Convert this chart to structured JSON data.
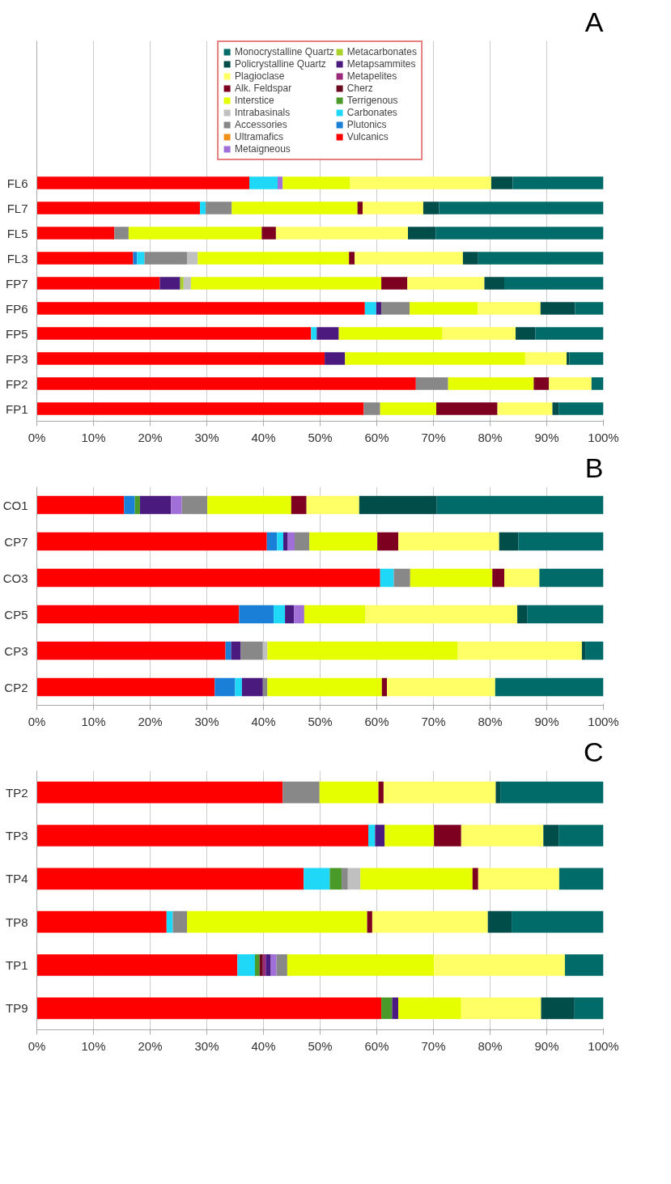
{
  "chart_data": [
    {
      "type": "bar",
      "orientation": "horizontal",
      "stacked": true,
      "title": "A",
      "categories": [
        "FL6",
        "FL7",
        "FL5",
        "FL3",
        "FP7",
        "FP6",
        "FP5",
        "FP3",
        "FP2",
        "FP1"
      ],
      "xlim": [
        0,
        100
      ],
      "xticks": [
        {
          "value": 0,
          "label": "0%"
        },
        {
          "value": 10,
          "label": "10%"
        },
        {
          "value": 20,
          "label": "20%"
        },
        {
          "value": 30,
          "label": "30%"
        },
        {
          "value": 40,
          "label": "40%"
        },
        {
          "value": 50,
          "label": "50%"
        },
        {
          "value": 60,
          "label": "60%"
        },
        {
          "value": 70,
          "label": "70%"
        },
        {
          "value": 80,
          "label": "80%"
        },
        {
          "value": 90,
          "label": "90%"
        },
        {
          "value": 100,
          "label": "100%"
        }
      ],
      "grid": "x",
      "legend": "top",
      "series": [
        {
          "name": "Vulcanics",
          "color": "#ff0000",
          "values": [
            37.5,
            28.8,
            13.7,
            17.0,
            21.7,
            57.9,
            48.4,
            50.8,
            66.9,
            57.7
          ]
        },
        {
          "name": "Plutonics",
          "color": "#1a7fd6",
          "values": [
            null,
            null,
            null,
            0.7,
            null,
            null,
            null,
            null,
            null,
            null
          ]
        },
        {
          "name": "Carbonates",
          "color": "#1fd8f8",
          "values": [
            5.0,
            1.0,
            null,
            1.3,
            null,
            2.0,
            1.0,
            null,
            null,
            null
          ]
        },
        {
          "name": "Terrigenous",
          "color": "#4a9a2a",
          "values": [
            null,
            null,
            null,
            null,
            null,
            null,
            null,
            null,
            null,
            null
          ]
        },
        {
          "name": "Cherz",
          "color": "#6b0a1e",
          "values": [
            null,
            null,
            null,
            null,
            null,
            null,
            null,
            null,
            null,
            null
          ]
        },
        {
          "name": "Metapelites",
          "color": "#9b2a7a",
          "values": [
            null,
            null,
            null,
            null,
            null,
            null,
            null,
            null,
            null,
            null
          ]
        },
        {
          "name": "Metapsammites",
          "color": "#4b1a7e",
          "values": [
            null,
            null,
            null,
            null,
            3.6,
            0.9,
            3.9,
            3.6,
            null,
            null
          ]
        },
        {
          "name": "Metacarbonates",
          "color": "#aad12a",
          "values": [
            null,
            null,
            null,
            null,
            0.6,
            null,
            null,
            null,
            null,
            null
          ]
        },
        {
          "name": "Metaigneous",
          "color": "#a070d8",
          "values": [
            0.9,
            null,
            null,
            null,
            null,
            null,
            null,
            null,
            null,
            null
          ]
        },
        {
          "name": "Ultramafics",
          "color": "#f0901a",
          "values": [
            null,
            null,
            null,
            null,
            null,
            null,
            null,
            null,
            null,
            null
          ]
        },
        {
          "name": "Accessories",
          "color": "#888888",
          "values": [
            null,
            4.6,
            2.5,
            7.5,
            null,
            5.0,
            null,
            null,
            5.7,
            2.9
          ]
        },
        {
          "name": "Intrabasinals",
          "color": "#c0c0c0",
          "values": [
            null,
            null,
            null,
            1.9,
            1.3,
            null,
            null,
            null,
            null,
            null
          ]
        },
        {
          "name": "Interstice",
          "color": "#e6ff00",
          "values": [
            11.9,
            22.2,
            23.5,
            26.7,
            33.6,
            12.0,
            18.3,
            31.8,
            15.1,
            9.9
          ]
        },
        {
          "name": "Alk. Feldspar",
          "color": "#7e0021",
          "values": [
            null,
            0.9,
            2.5,
            1.0,
            4.6,
            null,
            null,
            null,
            2.7,
            10.8
          ]
        },
        {
          "name": "Plagioclase",
          "color": "#ffff66",
          "values": [
            24.9,
            10.7,
            23.3,
            19.1,
            13.6,
            11.1,
            12.9,
            7.3,
            7.5,
            9.7
          ]
        },
        {
          "name": "Policrystalline Quartz",
          "color": "#004d4a",
          "values": [
            3.8,
            2.8,
            4.9,
            2.7,
            3.5,
            6.1,
            3.5,
            0.5,
            null,
            1.1
          ]
        },
        {
          "name": "Monocrystalline Quartz",
          "color": "#006b69",
          "values": [
            16.0,
            29.0,
            29.6,
            22.1,
            17.5,
            5.0,
            12.0,
            6.0,
            2.1,
            7.9
          ]
        }
      ]
    },
    {
      "type": "bar",
      "orientation": "horizontal",
      "stacked": true,
      "title": "B",
      "categories": [
        "CO1",
        "CP7",
        "CO3",
        "CP5",
        "CP3",
        "CP2"
      ],
      "xlim": [
        0,
        100
      ],
      "xticks": [
        {
          "value": 0,
          "label": "0%"
        },
        {
          "value": 10,
          "label": "10%"
        },
        {
          "value": 20,
          "label": "20%"
        },
        {
          "value": 30,
          "label": "30%"
        },
        {
          "value": 40,
          "label": "40%"
        },
        {
          "value": 50,
          "label": "50%"
        },
        {
          "value": 60,
          "label": "60%"
        },
        {
          "value": 70,
          "label": "70%"
        },
        {
          "value": 80,
          "label": "80%"
        },
        {
          "value": 90,
          "label": "90%"
        },
        {
          "value": 100,
          "label": "100%"
        }
      ],
      "grid": "x",
      "series": [
        {
          "color": "#ff0000",
          "values": [
            15.4,
            40.6,
            60.6,
            35.7,
            33.3,
            31.4
          ]
        },
        {
          "color": "#1a7fd6",
          "values": [
            1.9,
            1.8,
            null,
            6.1,
            1.0,
            3.6
          ]
        },
        {
          "color": "#1fd8f8",
          "values": [
            null,
            1.1,
            2.4,
            2.0,
            null,
            1.2
          ]
        },
        {
          "color": "#4a9a2a",
          "values": [
            0.9,
            null,
            null,
            null,
            null,
            null
          ]
        },
        {
          "color": "#4b1a7e",
          "values": [
            5.5,
            0.8,
            null,
            1.6,
            1.7,
            3.7
          ]
        },
        {
          "color": "#a070d8",
          "values": [
            1.9,
            1.2,
            null,
            1.8,
            null,
            null
          ]
        },
        {
          "color": "#888888",
          "values": [
            4.5,
            2.6,
            2.9,
            null,
            3.9,
            0.8
          ]
        },
        {
          "color": "#c0c0c0",
          "values": [
            null,
            null,
            null,
            null,
            0.8,
            null
          ]
        },
        {
          "color": "#e6ff00",
          "values": [
            14.8,
            12.0,
            14.5,
            10.8,
            33.6,
            20.2
          ]
        },
        {
          "color": "#7e0021",
          "values": [
            2.7,
            3.7,
            2.1,
            null,
            null,
            0.9
          ]
        },
        {
          "color": "#ffff66",
          "values": [
            9.3,
            17.8,
            6.2,
            26.8,
            21.9,
            19.1
          ]
        },
        {
          "color": "#004d4a",
          "values": [
            13.7,
            3.4,
            null,
            1.8,
            0.6,
            null
          ]
        },
        {
          "color": "#006b69",
          "values": [
            29.4,
            15.0,
            11.3,
            13.4,
            3.2,
            19.1
          ]
        }
      ]
    },
    {
      "type": "bar",
      "orientation": "horizontal",
      "stacked": true,
      "title": "C",
      "categories": [
        "TP2",
        "TP3",
        "TP4",
        "TP8",
        "TP1",
        "TP9"
      ],
      "xlim": [
        0,
        100
      ],
      "xticks": [
        {
          "value": 0,
          "label": "0%"
        },
        {
          "value": 10,
          "label": "10%"
        },
        {
          "value": 20,
          "label": "20%"
        },
        {
          "value": 30,
          "label": "30%"
        },
        {
          "value": 40,
          "label": "40%"
        },
        {
          "value": 50,
          "label": "50%"
        },
        {
          "value": 60,
          "label": "60%"
        },
        {
          "value": 70,
          "label": "70%"
        },
        {
          "value": 80,
          "label": "80%"
        },
        {
          "value": 90,
          "label": "90%"
        },
        {
          "value": 100,
          "label": "100%"
        }
      ],
      "grid": "x",
      "series": [
        {
          "color": "#ff0000",
          "values": [
            43.4,
            58.5,
            47.1,
            22.9,
            35.4,
            60.8
          ]
        },
        {
          "color": "#1fd8f8",
          "values": [
            null,
            1.2,
            4.6,
            1.1,
            3.1,
            null
          ]
        },
        {
          "color": "#4a9a2a",
          "values": [
            null,
            null,
            2.1,
            null,
            0.8,
            1.9
          ]
        },
        {
          "color": "#6b0a1e",
          "values": [
            null,
            null,
            null,
            null,
            0.6,
            null
          ]
        },
        {
          "color": "#9b2a7a",
          "values": [
            null,
            null,
            null,
            null,
            0.5,
            null
          ]
        },
        {
          "color": "#4b1a7e",
          "values": [
            null,
            1.7,
            null,
            null,
            0.9,
            1.1
          ]
        },
        {
          "color": "#a070d8",
          "values": [
            null,
            null,
            null,
            null,
            1.0,
            null
          ]
        },
        {
          "color": "#888888",
          "values": [
            6.5,
            null,
            1.1,
            2.5,
            1.9,
            null
          ]
        },
        {
          "color": "#c0c0c0",
          "values": [
            null,
            null,
            2.2,
            null,
            null,
            null
          ]
        },
        {
          "color": "#e6ff00",
          "values": [
            10.4,
            8.7,
            19.8,
            31.8,
            25.9,
            11.1
          ]
        },
        {
          "color": "#7e0021",
          "values": [
            0.9,
            4.8,
            1.0,
            0.9,
            null,
            null
          ]
        },
        {
          "color": "#ffff66",
          "values": [
            19.8,
            14.5,
            14.3,
            20.4,
            23.1,
            14.1
          ]
        },
        {
          "color": "#004d4a",
          "values": [
            0.8,
            2.7,
            null,
            4.2,
            null,
            5.9
          ]
        },
        {
          "color": "#006b69",
          "values": [
            18.2,
            7.9,
            7.8,
            16.2,
            6.8,
            5.1
          ]
        }
      ]
    }
  ]
}
